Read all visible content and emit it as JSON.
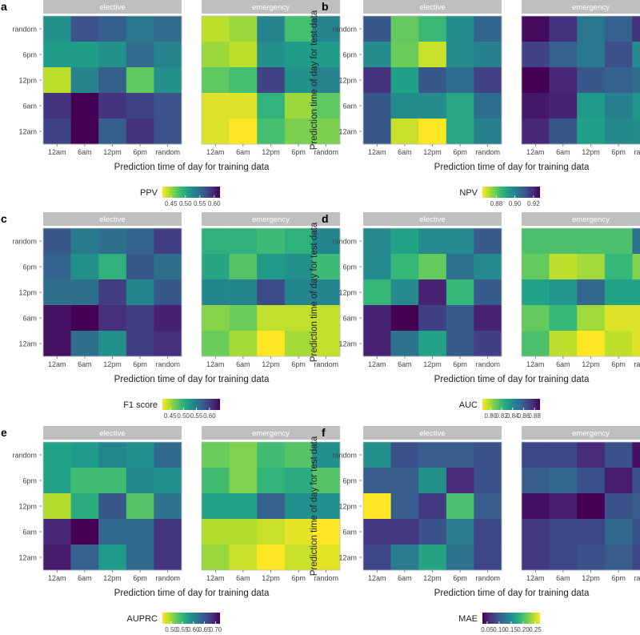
{
  "figure": {
    "x_title": "Prediction time of day for training data",
    "y_title": "Prediction time of day for test data",
    "x_ticks": [
      "12am",
      "6am",
      "12pm",
      "6pm",
      "random"
    ],
    "y_ticks": [
      "random",
      "6pm",
      "12pm",
      "6am",
      "12am"
    ],
    "facets": [
      "elective",
      "emergency"
    ]
  },
  "chart_data": [
    {
      "type": "heatmap",
      "panel": "a",
      "metric": "PPV",
      "reverse_scale": true,
      "colorbar_ticks": [
        "0.45",
        "0.50",
        "0.55",
        "0.60"
      ],
      "colorbar_values": [
        0.45,
        0.5,
        0.55,
        0.6
      ],
      "range": [
        0.42,
        0.62
      ],
      "facets": {
        "elective": [
          [
            0.52,
            0.57,
            0.56,
            0.54,
            0.55
          ],
          [
            0.51,
            0.51,
            0.52,
            0.55,
            0.53
          ],
          [
            0.44,
            0.53,
            0.56,
            0.47,
            0.52
          ],
          [
            0.59,
            0.62,
            0.59,
            0.58,
            0.57
          ],
          [
            0.58,
            0.62,
            0.56,
            0.59,
            0.57
          ]
        ],
        "emergency": [
          [
            0.44,
            0.45,
            0.53,
            0.48,
            0.53
          ],
          [
            0.45,
            0.44,
            0.52,
            0.51,
            0.51
          ],
          [
            0.47,
            0.48,
            0.58,
            0.52,
            0.53
          ],
          [
            0.43,
            0.43,
            0.49,
            0.45,
            0.47
          ],
          [
            0.43,
            0.42,
            0.48,
            0.46,
            0.46
          ]
        ]
      }
    },
    {
      "type": "heatmap",
      "panel": "b",
      "metric": "NPV",
      "reverse_scale": true,
      "colorbar_ticks": [
        "0.88",
        "0.90",
        "0.92"
      ],
      "colorbar_values": [
        0.88,
        0.9,
        0.92
      ],
      "range": [
        0.865,
        0.927
      ],
      "facets": {
        "elective": [
          [
            0.91,
            0.88,
            0.885,
            0.897,
            0.907
          ],
          [
            0.897,
            0.879,
            0.87,
            0.897,
            0.9
          ],
          [
            0.918,
            0.892,
            0.91,
            0.905,
            0.915
          ],
          [
            0.91,
            0.897,
            0.897,
            0.89,
            0.905
          ],
          [
            0.91,
            0.87,
            0.865,
            0.89,
            0.9
          ]
        ],
        "emergency": [
          [
            0.925,
            0.918,
            0.902,
            0.908,
            0.918
          ],
          [
            0.915,
            0.908,
            0.902,
            0.912,
            0.897
          ],
          [
            0.927,
            0.92,
            0.91,
            0.908,
            0.905
          ],
          [
            0.923,
            0.921,
            0.893,
            0.9,
            0.895
          ],
          [
            0.92,
            0.91,
            0.892,
            0.898,
            0.897
          ]
        ]
      }
    },
    {
      "type": "heatmap",
      "panel": "c",
      "metric": "F1 score",
      "reverse_scale": true,
      "colorbar_ticks": [
        "0.45",
        "0.50",
        "0.55",
        "0.60"
      ],
      "colorbar_values": [
        0.45,
        0.5,
        0.55,
        0.6
      ],
      "range": [
        0.42,
        0.64
      ],
      "facets": {
        "elective": [
          [
            0.58,
            0.55,
            0.56,
            0.57,
            0.6
          ],
          [
            0.57,
            0.53,
            0.5,
            0.58,
            0.56
          ],
          [
            0.56,
            0.56,
            0.6,
            0.54,
            0.58
          ],
          [
            0.63,
            0.64,
            0.61,
            0.6,
            0.62
          ],
          [
            0.63,
            0.56,
            0.53,
            0.6,
            0.61
          ]
        ],
        "emergency": [
          [
            0.5,
            0.5,
            0.49,
            0.5,
            0.54
          ],
          [
            0.51,
            0.48,
            0.52,
            0.53,
            0.49
          ],
          [
            0.54,
            0.54,
            0.59,
            0.54,
            0.54
          ],
          [
            0.46,
            0.47,
            0.44,
            0.44,
            0.44
          ],
          [
            0.47,
            0.45,
            0.42,
            0.45,
            0.44
          ]
        ]
      }
    },
    {
      "type": "heatmap",
      "panel": "d",
      "metric": "AUC",
      "reverse_scale": true,
      "colorbar_ticks": [
        "0.80",
        "0.82",
        "0.84",
        "0.86",
        "0.88"
      ],
      "colorbar_values": [
        0.8,
        0.82,
        0.84,
        0.86,
        0.88
      ],
      "range": [
        0.785,
        0.89
      ],
      "facets": {
        "elective": [
          [
            0.84,
            0.83,
            0.84,
            0.84,
            0.86
          ],
          [
            0.84,
            0.82,
            0.81,
            0.85,
            0.84
          ],
          [
            0.82,
            0.84,
            0.88,
            0.82,
            0.86
          ],
          [
            0.88,
            0.89,
            0.87,
            0.86,
            0.88
          ],
          [
            0.88,
            0.85,
            0.83,
            0.86,
            0.87
          ]
        ],
        "emergency": [
          [
            0.815,
            0.815,
            0.815,
            0.815,
            0.85
          ],
          [
            0.81,
            0.795,
            0.8,
            0.82,
            0.805
          ],
          [
            0.83,
            0.835,
            0.855,
            0.83,
            0.83
          ],
          [
            0.81,
            0.82,
            0.8,
            0.79,
            0.79
          ],
          [
            0.815,
            0.795,
            0.785,
            0.795,
            0.79
          ]
        ]
      }
    },
    {
      "type": "heatmap",
      "panel": "e",
      "metric": "AUPRC",
      "reverse_scale": true,
      "colorbar_ticks": [
        "0.50",
        "0.55",
        "0.60",
        "0.65",
        "0.70"
      ],
      "colorbar_values": [
        0.5,
        0.55,
        0.6,
        0.65,
        0.7
      ],
      "range": [
        0.46,
        0.72
      ],
      "facets": {
        "elective": [
          [
            0.57,
            0.58,
            0.6,
            0.59,
            0.63
          ],
          [
            0.57,
            0.54,
            0.54,
            0.6,
            0.59
          ],
          [
            0.49,
            0.56,
            0.65,
            0.53,
            0.62
          ],
          [
            0.69,
            0.72,
            0.63,
            0.63,
            0.68
          ],
          [
            0.7,
            0.64,
            0.58,
            0.63,
            0.68
          ]
        ],
        "emergency": [
          [
            0.52,
            0.51,
            0.54,
            0.53,
            0.59
          ],
          [
            0.54,
            0.51,
            0.55,
            0.56,
            0.53
          ],
          [
            0.57,
            0.57,
            0.64,
            0.59,
            0.59
          ],
          [
            0.49,
            0.49,
            0.48,
            0.47,
            0.46
          ],
          [
            0.5,
            0.48,
            0.46,
            0.48,
            0.47
          ]
        ]
      }
    },
    {
      "type": "heatmap",
      "panel": "f",
      "metric": "MAE",
      "reverse_scale": false,
      "colorbar_ticks": [
        "0.05",
        "0.10",
        "0.15",
        "0.20",
        "0.25"
      ],
      "colorbar_values": [
        0.05,
        0.1,
        0.15,
        0.2,
        0.25
      ],
      "range": [
        0.03,
        0.27
      ],
      "facets": {
        "elective": [
          [
            0.15,
            0.09,
            0.1,
            0.1,
            0.09
          ],
          [
            0.1,
            0.1,
            0.15,
            0.06,
            0.09
          ],
          [
            0.27,
            0.1,
            0.07,
            0.2,
            0.1
          ],
          [
            0.07,
            0.07,
            0.09,
            0.13,
            0.08
          ],
          [
            0.08,
            0.13,
            0.17,
            0.12,
            0.08
          ]
        ],
        "emergency": [
          [
            0.08,
            0.08,
            0.06,
            0.09,
            0.04
          ],
          [
            0.1,
            0.11,
            0.09,
            0.05,
            0.09
          ],
          [
            0.04,
            0.05,
            0.03,
            0.09,
            0.1
          ],
          [
            0.07,
            0.08,
            0.08,
            0.11,
            0.09
          ],
          [
            0.07,
            0.08,
            0.09,
            0.1,
            0.08
          ]
        ]
      }
    }
  ]
}
